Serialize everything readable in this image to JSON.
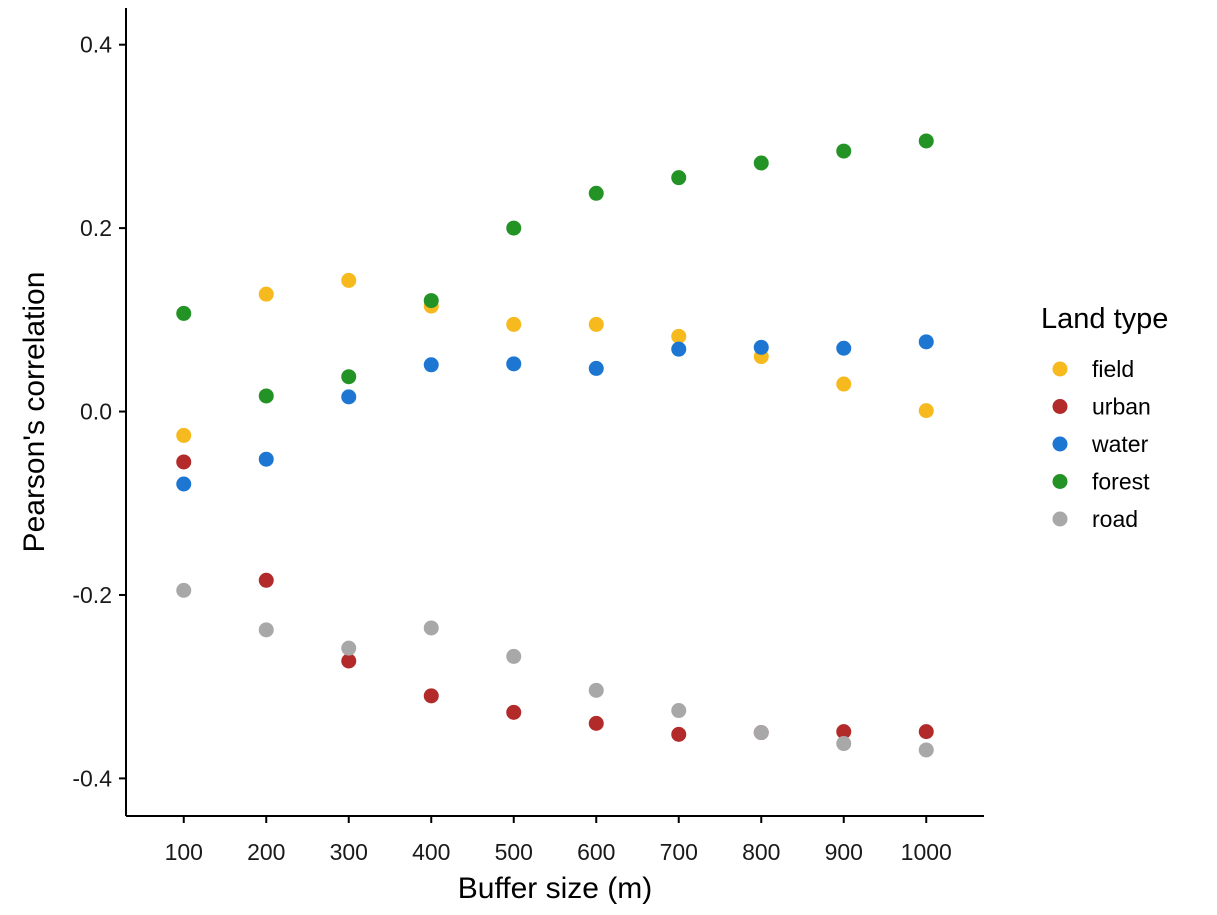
{
  "chart_data": {
    "type": "scatter",
    "xlabel": "Buffer size (m)",
    "ylabel": "Pearson's correlation",
    "x": [
      100,
      200,
      300,
      400,
      500,
      600,
      700,
      800,
      900,
      1000
    ],
    "x_ticks": [
      "100",
      "200",
      "300",
      "400",
      "500",
      "600",
      "700",
      "800",
      "900",
      "1000"
    ],
    "y_ticks": [
      {
        "value": 0.4,
        "label": "0.4"
      },
      {
        "value": 0.2,
        "label": "0.2"
      },
      {
        "value": 0.0,
        "label": "0.0"
      },
      {
        "value": -0.2,
        "label": "-0.2"
      },
      {
        "value": -0.4,
        "label": "-0.4"
      }
    ],
    "xlim": [
      30,
      1070
    ],
    "ylim": [
      -0.441,
      0.44
    ],
    "grid": false,
    "legend": {
      "title": "Land type",
      "position": "right"
    },
    "series": [
      {
        "name": "field",
        "color": "#F6BA1E",
        "values": [
          -0.026,
          0.128,
          0.143,
          0.115,
          0.095,
          0.095,
          0.082,
          0.06,
          0.03,
          0.001
        ]
      },
      {
        "name": "urban",
        "color": "#B22A2A",
        "values": [
          -0.055,
          -0.184,
          -0.272,
          -0.31,
          -0.328,
          -0.34,
          -0.352,
          -0.35,
          -0.349,
          -0.349
        ]
      },
      {
        "name": "water",
        "color": "#1C76D2",
        "values": [
          -0.079,
          -0.052,
          0.016,
          0.051,
          0.052,
          0.047,
          0.068,
          0.07,
          0.069,
          0.076
        ]
      },
      {
        "name": "forest",
        "color": "#249325",
        "values": [
          0.107,
          0.017,
          0.038,
          0.121,
          0.2,
          0.238,
          0.255,
          0.271,
          0.284,
          0.295
        ]
      },
      {
        "name": "road",
        "color": "#A8A8A8",
        "values": [
          -0.195,
          -0.238,
          -0.258,
          -0.236,
          -0.267,
          -0.304,
          -0.326,
          -0.35,
          -0.362,
          -0.369
        ]
      }
    ]
  }
}
